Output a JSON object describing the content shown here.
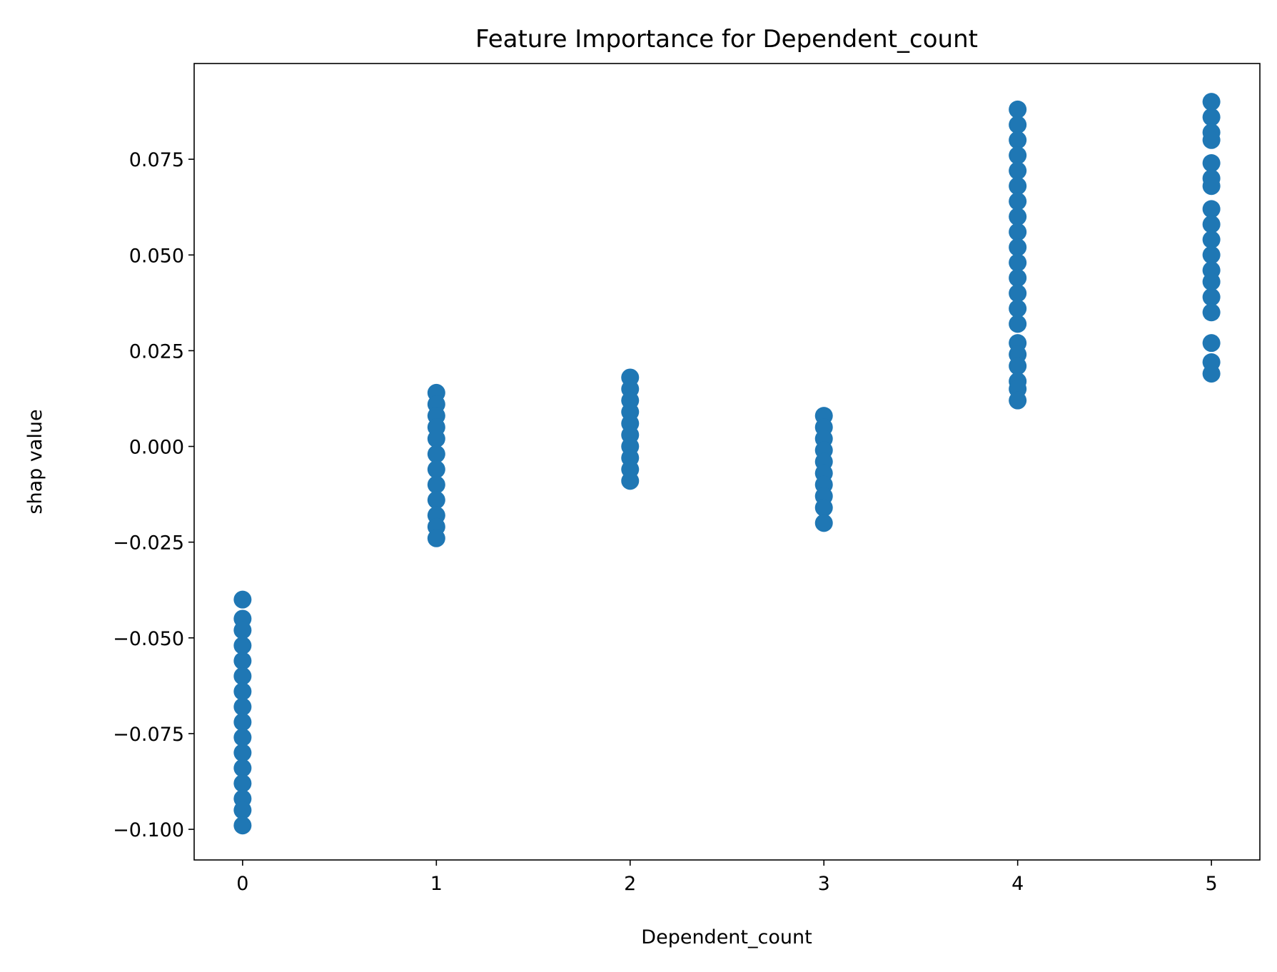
{
  "chart_data": {
    "type": "scatter",
    "title": "Feature Importance for Dependent_count",
    "x_label": "Dependent_count",
    "y_label": "shap value",
    "color": "#1f77b4",
    "x": [
      0,
      0,
      0,
      0,
      0,
      0,
      0,
      0,
      0,
      0,
      0,
      0,
      0,
      0,
      0,
      0,
      1,
      1,
      1,
      1,
      1,
      1,
      1,
      1,
      1,
      1,
      1,
      1,
      2,
      2,
      2,
      2,
      2,
      2,
      2,
      2,
      2,
      2,
      3,
      3,
      3,
      3,
      3,
      3,
      3,
      3,
      3,
      3,
      4,
      4,
      4,
      4,
      4,
      4,
      4,
      4,
      4,
      4,
      4,
      4,
      4,
      4,
      4,
      4,
      4,
      4,
      4,
      4,
      4,
      5,
      5,
      5,
      5,
      5,
      5,
      5,
      5,
      5,
      5,
      5,
      5,
      5,
      5,
      5,
      5,
      5,
      5
    ],
    "y": [
      -0.04,
      -0.045,
      -0.048,
      -0.052,
      -0.056,
      -0.06,
      -0.064,
      -0.068,
      -0.072,
      -0.076,
      -0.08,
      -0.084,
      -0.088,
      -0.092,
      -0.095,
      -0.099,
      0.014,
      0.011,
      0.008,
      0.005,
      0.002,
      -0.002,
      -0.006,
      -0.01,
      -0.014,
      -0.018,
      -0.021,
      -0.024,
      0.018,
      0.015,
      0.012,
      0.009,
      0.006,
      0.003,
      0.0,
      -0.003,
      -0.006,
      -0.009,
      0.008,
      0.005,
      0.002,
      -0.001,
      -0.004,
      -0.007,
      -0.01,
      -0.013,
      -0.016,
      -0.02,
      0.088,
      0.084,
      0.08,
      0.076,
      0.072,
      0.068,
      0.064,
      0.06,
      0.056,
      0.052,
      0.048,
      0.044,
      0.04,
      0.036,
      0.032,
      0.027,
      0.024,
      0.021,
      0.017,
      0.015,
      0.012,
      0.09,
      0.086,
      0.082,
      0.08,
      0.074,
      0.07,
      0.068,
      0.062,
      0.058,
      0.054,
      0.05,
      0.046,
      0.043,
      0.039,
      0.035,
      0.027,
      0.022,
      0.019
    ],
    "xlim": [
      -0.25,
      5.25
    ],
    "xticks": [
      0,
      1,
      2,
      3,
      4,
      5
    ],
    "ylim": [
      -0.108,
      0.1
    ],
    "yticks": [
      {
        "value": -0.1,
        "label": "−0.100"
      },
      {
        "value": -0.075,
        "label": "−0.075"
      },
      {
        "value": -0.05,
        "label": "−0.050"
      },
      {
        "value": -0.025,
        "label": "−0.025"
      },
      {
        "value": 0,
        "label": "0.000"
      },
      {
        "value": 0.025,
        "label": "0.025"
      },
      {
        "value": 0.05,
        "label": "0.050"
      },
      {
        "value": 0.075,
        "label": "0.075"
      }
    ]
  }
}
